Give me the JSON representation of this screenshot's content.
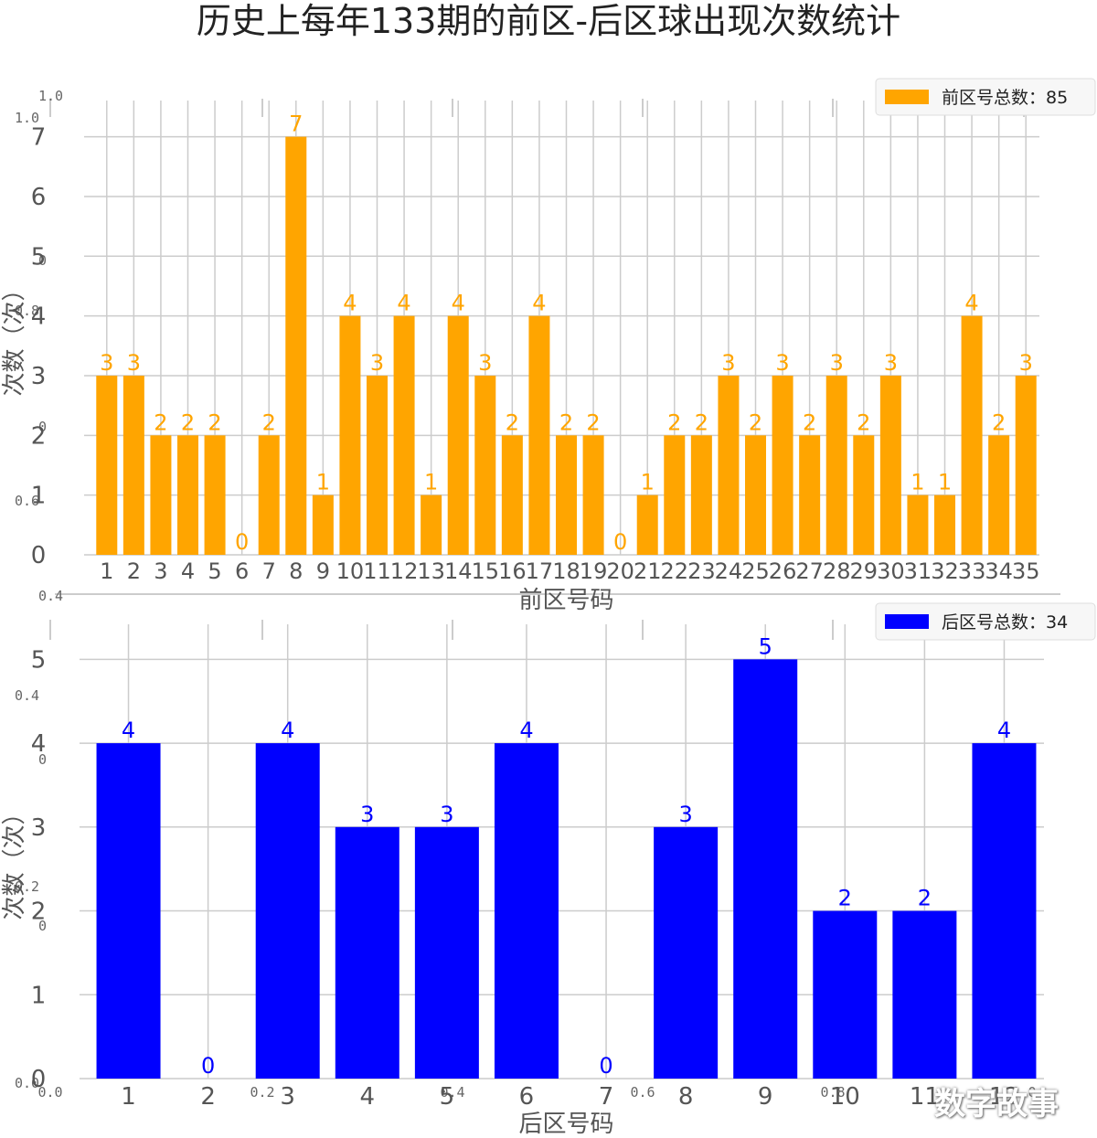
{
  "title": "历史上每年133期的前区-后区球出现次数统计",
  "watermark": "数字故事",
  "colors": {
    "front": "#FFA500",
    "back": "#0000FF",
    "grid": "#CCCCCC",
    "text": "#555555"
  },
  "ghost_axis": {
    "x_ticks": [
      "0.0",
      "0.2",
      "0.4",
      "0.6",
      "0.8",
      "1.0"
    ],
    "y_ticks": [
      "0.0",
      "0.2",
      "0.4",
      "0.6",
      "0.8",
      "1.0"
    ],
    "top_y_ticks": [
      "0.4",
      "0.6",
      "0.8",
      "1.0"
    ],
    "mid_y_ticks": [
      "0.0",
      "0.2",
      "0.4"
    ],
    "corner_zero": "0",
    "top_left": "1.0"
  },
  "chart_data": [
    {
      "type": "bar",
      "title": "",
      "xlabel": "前区号码",
      "ylabel": "次数（次）",
      "ylim": [
        0,
        7.3
      ],
      "grid": true,
      "legend": "top-right",
      "categories": [
        "1",
        "2",
        "3",
        "4",
        "5",
        "6",
        "7",
        "8",
        "9",
        "10",
        "11",
        "12",
        "13",
        "14",
        "15",
        "16",
        "17",
        "18",
        "19",
        "20",
        "21",
        "22",
        "23",
        "24",
        "25",
        "26",
        "27",
        "28",
        "29",
        "30",
        "31",
        "32",
        "33",
        "34",
        "35"
      ],
      "yticks": [
        "0",
        "1",
        "2",
        "3",
        "4",
        "5",
        "6",
        "7"
      ],
      "series": [
        {
          "name": "前区号总数：85",
          "color": "#FFA500",
          "values": [
            3,
            3,
            2,
            2,
            2,
            0,
            2,
            7,
            1,
            4,
            3,
            4,
            1,
            4,
            3,
            2,
            4,
            2,
            2,
            0,
            1,
            2,
            2,
            3,
            2,
            3,
            2,
            3,
            2,
            3,
            1,
            1,
            4,
            2,
            3
          ]
        }
      ]
    },
    {
      "type": "bar",
      "title": "",
      "xlabel": "后区号码",
      "ylabel": "次数（次）",
      "ylim": [
        0,
        5.2
      ],
      "grid": true,
      "legend": "top-right",
      "categories": [
        "1",
        "2",
        "3",
        "4",
        "5",
        "6",
        "7",
        "8",
        "9",
        "10",
        "11",
        "12"
      ],
      "yticks": [
        "0",
        "1",
        "2",
        "3",
        "4",
        "5"
      ],
      "series": [
        {
          "name": "后区号总数：34",
          "color": "#0000FF",
          "values": [
            4,
            0,
            4,
            3,
            3,
            4,
            0,
            3,
            5,
            2,
            2,
            4
          ]
        }
      ]
    }
  ]
}
